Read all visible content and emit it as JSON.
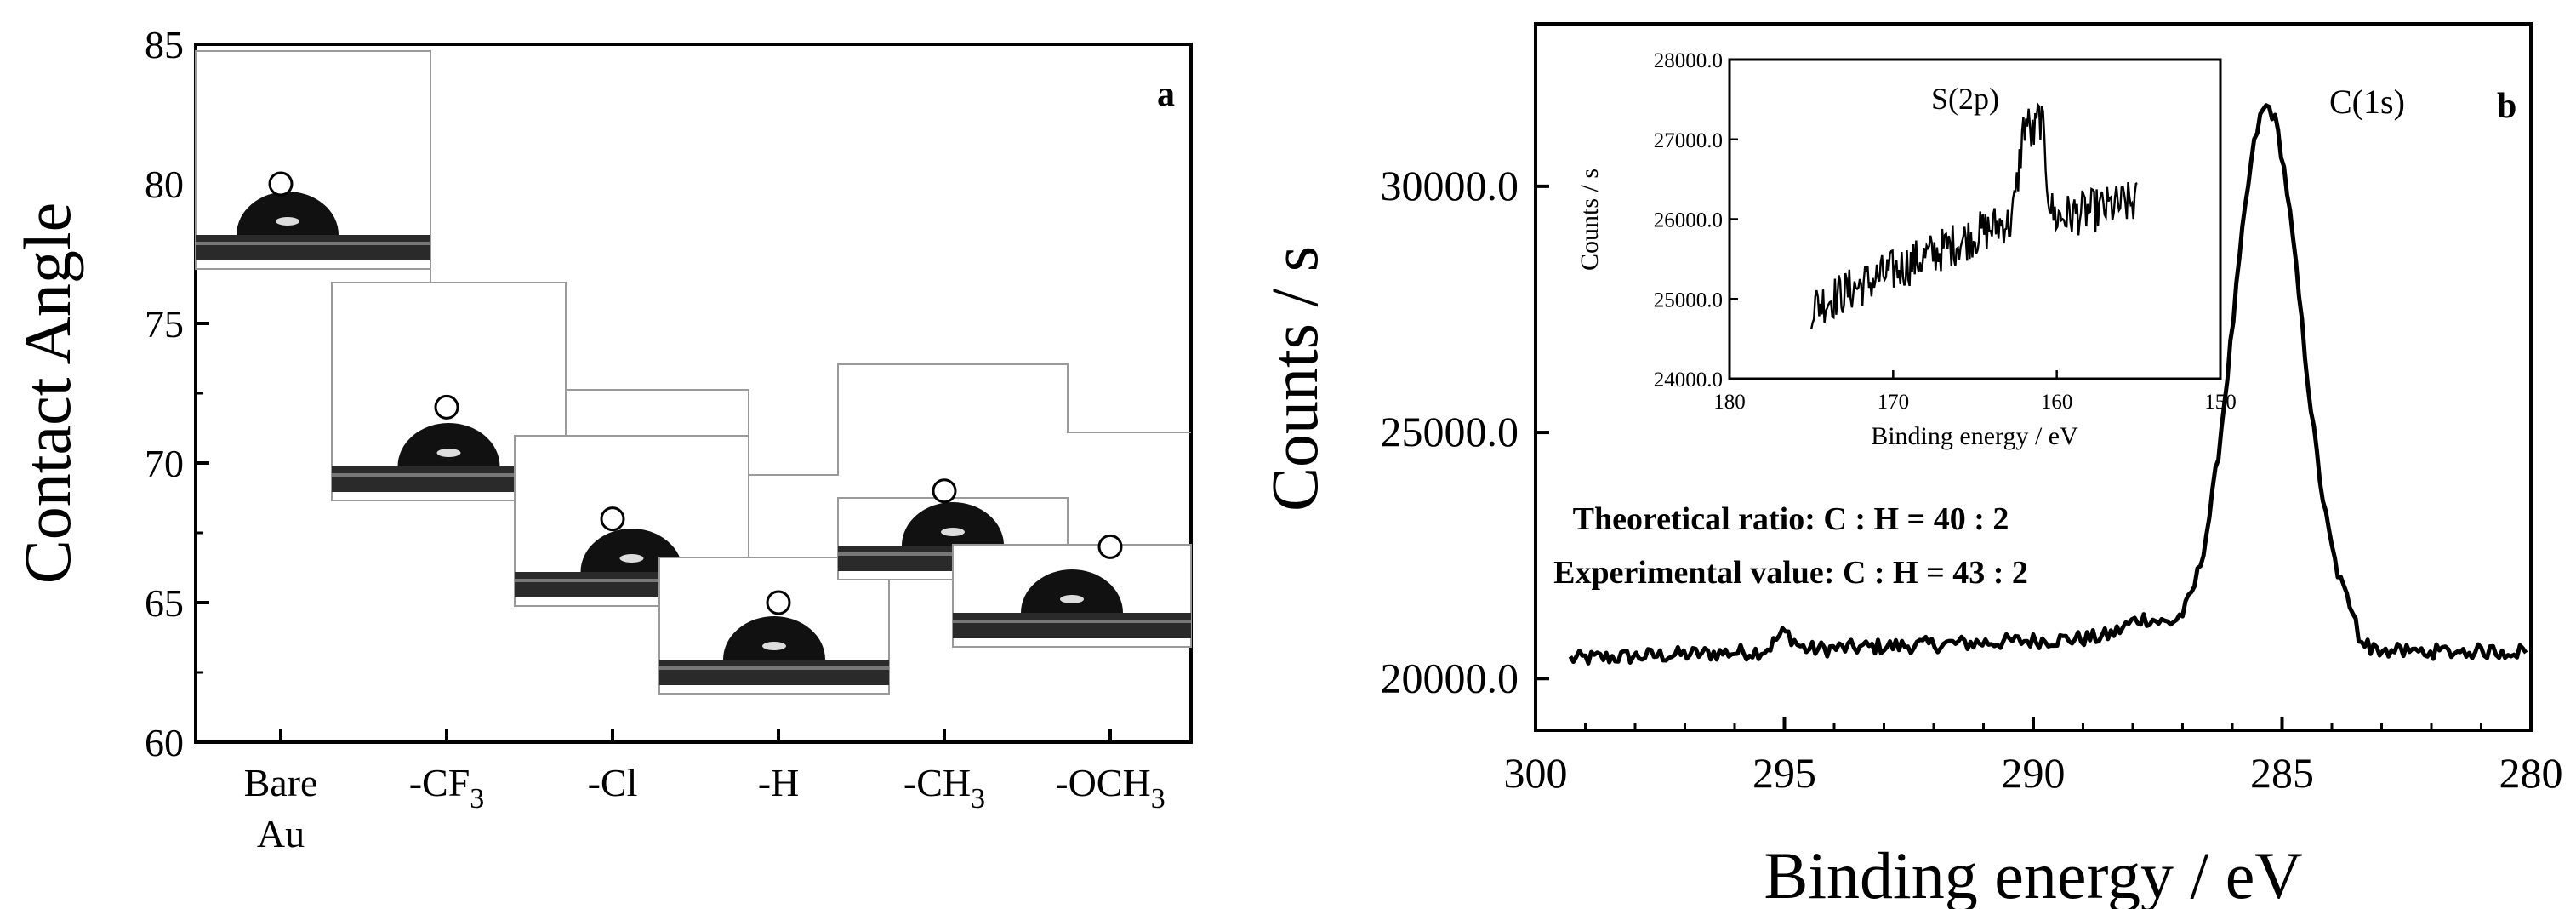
{
  "chart_data": [
    {
      "panel": "a",
      "type": "scatter",
      "ylabel": "Contact Angle",
      "ylim": [
        60,
        85
      ],
      "yticks": [
        60,
        65,
        70,
        75,
        80,
        85
      ],
      "categories": [
        {
          "base": "Bare",
          "sub": "",
          "line2": "Au"
        },
        {
          "base": "-CF",
          "sub": "3",
          "line2": ""
        },
        {
          "base": "-Cl",
          "sub": "",
          "line2": ""
        },
        {
          "base": "-H",
          "sub": "",
          "line2": ""
        },
        {
          "base": "-CH",
          "sub": "3",
          "line2": ""
        },
        {
          "base": "-OCH",
          "sub": "3",
          "line2": ""
        }
      ],
      "values": [
        80,
        72,
        68,
        65,
        69,
        67
      ],
      "marker": "open-circle",
      "inset_images": "water droplet photos"
    },
    {
      "panel": "b",
      "type": "line",
      "xlabel": "Binding energy / eV",
      "ylabel": "Counts / s",
      "xlim": [
        300,
        280
      ],
      "xticks": [
        300,
        295,
        290,
        285,
        280
      ],
      "yticks": [
        20000.0,
        25000.0,
        30000.0
      ],
      "ytick_labels": [
        "20000.0",
        "25000.0",
        "30000.0"
      ],
      "ylim": [
        18950,
        33300
      ],
      "peak_label": "C(1s)",
      "peak_position": 285.3,
      "peak_value": 31650,
      "annotations": [
        "Theoretical ratio: C : H = 40 : 2",
        "Experimental value: C : H = 43 : 2"
      ],
      "inset": {
        "type": "line",
        "xlabel": "Binding energy / eV",
        "ylabel": "Counts / s",
        "xlim": [
          180,
          150
        ],
        "xticks": [
          180,
          170,
          160,
          150
        ],
        "ylim": [
          24000.0,
          28000.0
        ],
        "yticks": [
          24000.0,
          25000.0,
          26000.0,
          27000.0,
          28000.0
        ],
        "ytick_labels": [
          "24000.0",
          "25000.0",
          "26000.0",
          "27000.0",
          "28000.0"
        ],
        "peak_label": "S(2p)",
        "peak_position": 161.5,
        "peak_value": 27200
      }
    }
  ]
}
